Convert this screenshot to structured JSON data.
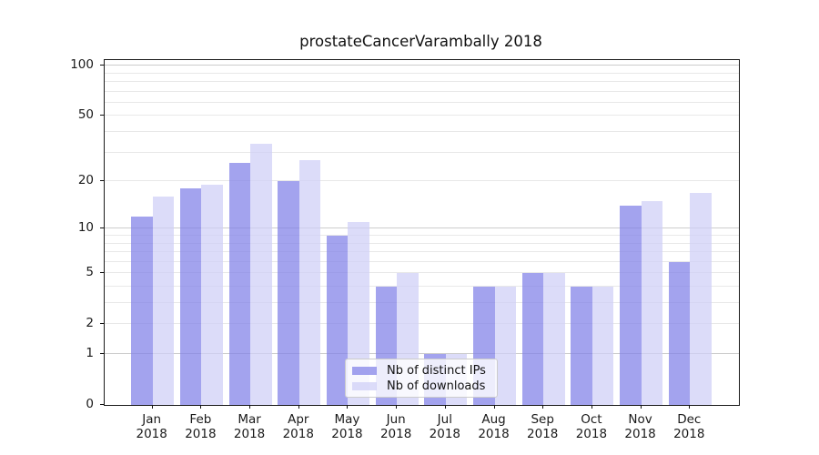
{
  "chart_data": {
    "type": "bar",
    "title": "prostateCancerVarambally 2018",
    "categories": [
      "Jan",
      "Feb",
      "Mar",
      "Apr",
      "May",
      "Jun",
      "Jul",
      "Aug",
      "Sep",
      "Oct",
      "Nov",
      "Dec"
    ],
    "category_year": "2018",
    "series": [
      {
        "name": "Nb of distinct IPs",
        "color": "#8080e8",
        "alpha": 0.72,
        "values": [
          12,
          18,
          26,
          20,
          9,
          4,
          1,
          4,
          5,
          4,
          14,
          6
        ]
      },
      {
        "name": "Nb of downloads",
        "color": "#cfcff6",
        "alpha": 0.72,
        "values": [
          16,
          19,
          34,
          27,
          11,
          5,
          1,
          4,
          5,
          4,
          15,
          17
        ]
      }
    ],
    "yscale": "log10(value+1)",
    "ylim": [
      0,
      108
    ],
    "ytick_labels": [
      0,
      1,
      2,
      5,
      10,
      20,
      50,
      100
    ],
    "grid": true,
    "legend_position": "lower center"
  },
  "colors": {
    "background": "#ffffff",
    "spine": "#1a1a1a",
    "grid_minor": "#e8e8e8",
    "grid_major": "#cccccc",
    "tick": "#111111",
    "text": "#1a1a1a",
    "legend_bg": "rgba(255,255,255,0.8)",
    "legend_border": "#cccccc"
  }
}
